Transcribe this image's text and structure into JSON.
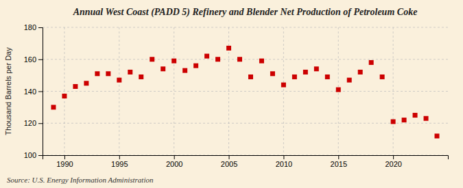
{
  "chart_data": {
    "type": "scatter",
    "title": "Annual West Coast (PADD 5) Refinery and Blender Net Production of Petroleum Coke",
    "ylabel": "Thousand Barrels per Day",
    "source": "Source: U.S. Energy Information Administration",
    "x": [
      1989,
      1990,
      1991,
      1992,
      1993,
      1994,
      1995,
      1996,
      1997,
      1998,
      1999,
      2000,
      2001,
      2002,
      2003,
      2004,
      2005,
      2006,
      2007,
      2008,
      2009,
      2010,
      2011,
      2012,
      2013,
      2014,
      2015,
      2016,
      2017,
      2018,
      2019,
      2020,
      2021,
      2022,
      2023,
      2024
    ],
    "values": [
      130,
      137,
      143,
      145,
      151,
      151,
      147,
      152,
      149,
      160,
      154,
      159,
      153,
      156,
      162,
      160,
      167,
      160,
      149,
      159,
      151,
      144,
      149,
      152,
      154,
      149,
      141,
      147,
      152,
      158,
      149,
      121,
      122,
      125,
      123,
      112
    ],
    "color": "#cc0000",
    "marker": "square",
    "xlim": [
      1988,
      2025
    ],
    "xticks": [
      1990,
      1995,
      2000,
      2005,
      2010,
      2015,
      2020
    ],
    "ylim": [
      100,
      180
    ],
    "yticks": [
      100,
      120,
      140,
      160,
      180
    ],
    "grid": true
  }
}
